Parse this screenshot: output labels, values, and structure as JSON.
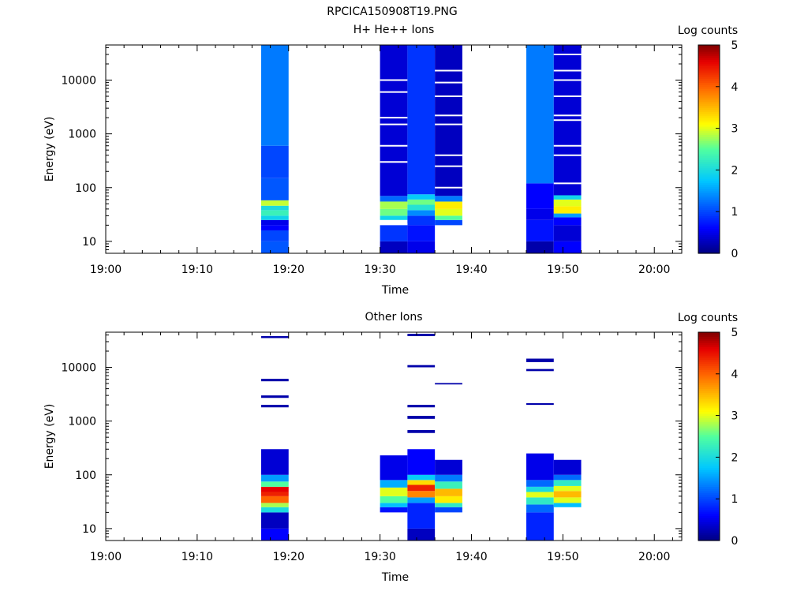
{
  "figure_title": "RPCICA150908T19.PNG",
  "chart_data": [
    {
      "type": "heatmap",
      "title": "H+ He++ Ions",
      "xlabel": "Time",
      "ylabel": "Energy (eV)",
      "x_ticks": [
        "19:00",
        "19:10",
        "19:20",
        "19:30",
        "19:40",
        "19:50",
        "20:00"
      ],
      "x_range": [
        "19:00",
        "20:03"
      ],
      "y_scale": "log",
      "y_ticks": [
        10,
        100,
        1000,
        10000
      ],
      "y_range": [
        6,
        45000
      ],
      "colorbar_label": "Log counts",
      "colorbar_ticks": [
        0,
        1,
        2,
        3,
        4,
        5
      ],
      "colorbar_range": [
        0,
        5
      ],
      "columns": [
        {
          "start": "19:17",
          "end": "19:20",
          "bands": [
            {
              "e_lo": 6,
              "e_hi": 10,
              "level": 1.1
            },
            {
              "e_lo": 10,
              "e_hi": 16,
              "level": 1.0
            },
            {
              "e_lo": 16,
              "e_hi": 20,
              "level": 0.6
            },
            {
              "e_lo": 20,
              "e_hi": 25,
              "level": 0.5
            },
            {
              "e_lo": 25,
              "e_hi": 30,
              "level": 1.9
            },
            {
              "e_lo": 30,
              "e_hi": 38,
              "level": 2.3
            },
            {
              "e_lo": 38,
              "e_hi": 46,
              "level": 2.0
            },
            {
              "e_lo": 46,
              "e_hi": 58,
              "level": 2.9
            },
            {
              "e_lo": 58,
              "e_hi": 150,
              "level": 1.1
            },
            {
              "e_lo": 150,
              "e_hi": 600,
              "level": 1.0
            },
            {
              "e_lo": 600,
              "e_hi": 45000,
              "level": 1.3
            }
          ]
        },
        {
          "start": "19:30",
          "end": "19:33",
          "bands": [
            {
              "e_lo": 6,
              "e_hi": 10,
              "level": 0.3
            },
            {
              "e_lo": 10,
              "e_hi": 20,
              "level": 0.9
            },
            {
              "e_lo": 25,
              "e_hi": 30,
              "level": 1.9
            },
            {
              "e_lo": 30,
              "e_hi": 40,
              "level": 2.6
            },
            {
              "e_lo": 40,
              "e_hi": 55,
              "level": 2.8
            },
            {
              "e_lo": 55,
              "e_hi": 70,
              "level": 1.2
            },
            {
              "e_lo": 70,
              "e_hi": 45000,
              "level": 0.4
            }
          ]
        },
        {
          "start": "19:33",
          "end": "19:36",
          "bands": [
            {
              "e_lo": 6,
              "e_hi": 10,
              "level": 0.5
            },
            {
              "e_lo": 10,
              "e_hi": 20,
              "level": 0.7
            },
            {
              "e_lo": 20,
              "e_hi": 30,
              "level": 0.9
            },
            {
              "e_lo": 30,
              "e_hi": 38,
              "level": 1.4
            },
            {
              "e_lo": 38,
              "e_hi": 48,
              "level": 2.1
            },
            {
              "e_lo": 48,
              "e_hi": 60,
              "level": 2.6
            },
            {
              "e_lo": 60,
              "e_hi": 75,
              "level": 1.8
            },
            {
              "e_lo": 75,
              "e_hi": 45000,
              "level": 0.9
            }
          ]
        },
        {
          "start": "19:36",
          "end": "19:39",
          "bands": [
            {
              "e_lo": 20,
              "e_hi": 25,
              "level": 1.0
            },
            {
              "e_lo": 25,
              "e_hi": 30,
              "level": 2.5
            },
            {
              "e_lo": 30,
              "e_hi": 40,
              "level": 3.0
            },
            {
              "e_lo": 40,
              "e_hi": 55,
              "level": 3.2
            },
            {
              "e_lo": 55,
              "e_hi": 70,
              "level": 1.3
            },
            {
              "e_lo": 70,
              "e_hi": 45000,
              "level": 0.3
            }
          ]
        },
        {
          "start": "19:46",
          "end": "19:49",
          "bands": [
            {
              "e_lo": 6,
              "e_hi": 10,
              "level": 0.2
            },
            {
              "e_lo": 10,
              "e_hi": 25,
              "level": 0.7
            },
            {
              "e_lo": 25,
              "e_hi": 40,
              "level": 0.5
            },
            {
              "e_lo": 40,
              "e_hi": 120,
              "level": 0.6
            },
            {
              "e_lo": 120,
              "e_hi": 45000,
              "level": 1.3
            }
          ]
        },
        {
          "start": "19:49",
          "end": "19:52",
          "bands": [
            {
              "e_lo": 6,
              "e_hi": 10,
              "level": 0.6
            },
            {
              "e_lo": 10,
              "e_hi": 20,
              "level": 0.4
            },
            {
              "e_lo": 20,
              "e_hi": 28,
              "level": 0.6
            },
            {
              "e_lo": 28,
              "e_hi": 33,
              "level": 1.5
            },
            {
              "e_lo": 33,
              "e_hi": 45,
              "level": 3.2
            },
            {
              "e_lo": 45,
              "e_hi": 60,
              "level": 3.0
            },
            {
              "e_lo": 60,
              "e_hi": 72,
              "level": 1.9
            },
            {
              "e_lo": 72,
              "e_hi": 45000,
              "level": 0.4
            }
          ]
        }
      ],
      "gaps": [
        {
          "start": "19:30",
          "end": "19:33",
          "e": [
            21,
            300,
            600,
            1500,
            2000,
            6000,
            10000
          ]
        },
        {
          "start": "19:36",
          "end": "19:39",
          "e": [
            100,
            250,
            400,
            1500,
            2200,
            5000,
            9000,
            15000
          ]
        },
        {
          "start": "19:49",
          "end": "19:52",
          "e": [
            120,
            400,
            600,
            1800,
            2200,
            5000,
            10000,
            15000,
            30000
          ]
        }
      ]
    },
    {
      "type": "heatmap",
      "title": "Other Ions",
      "xlabel": "Time",
      "ylabel": "Energy (eV)",
      "x_ticks": [
        "19:00",
        "19:10",
        "19:20",
        "19:30",
        "19:40",
        "19:50",
        "20:00"
      ],
      "x_range": [
        "19:00",
        "20:03"
      ],
      "y_scale": "log",
      "y_ticks": [
        10,
        100,
        1000,
        10000
      ],
      "y_range": [
        6,
        45000
      ],
      "colorbar_label": "Log counts",
      "colorbar_ticks": [
        0,
        1,
        2,
        3,
        4,
        5
      ],
      "colorbar_range": [
        0,
        5
      ],
      "columns": [
        {
          "start": "19:17",
          "end": "19:20",
          "bands": [
            {
              "e_lo": 6,
              "e_hi": 10,
              "level": 0.6
            },
            {
              "e_lo": 10,
              "e_hi": 20,
              "level": 0.3
            },
            {
              "e_lo": 20,
              "e_hi": 25,
              "level": 2.0
            },
            {
              "e_lo": 25,
              "e_hi": 30,
              "level": 2.8
            },
            {
              "e_lo": 30,
              "e_hi": 40,
              "level": 4.0
            },
            {
              "e_lo": 40,
              "e_hi": 48,
              "level": 4.4
            },
            {
              "e_lo": 48,
              "e_hi": 60,
              "level": 4.6
            },
            {
              "e_lo": 60,
              "e_hi": 75,
              "level": 2.5
            },
            {
              "e_lo": 75,
              "e_hi": 100,
              "level": 1.5
            },
            {
              "e_lo": 100,
              "e_hi": 300,
              "level": 0.4
            },
            {
              "e_lo": 1800,
              "e_hi": 2000,
              "level": 0.2
            },
            {
              "e_lo": 2700,
              "e_hi": 3000,
              "level": 0.2
            },
            {
              "e_lo": 5500,
              "e_hi": 6100,
              "level": 0.2
            },
            {
              "e_lo": 35000,
              "e_hi": 38000,
              "level": 0.2
            }
          ]
        },
        {
          "start": "19:30",
          "end": "19:33",
          "bands": [
            {
              "e_lo": 20,
              "e_hi": 25,
              "level": 0.7
            },
            {
              "e_lo": 25,
              "e_hi": 30,
              "level": 1.7
            },
            {
              "e_lo": 30,
              "e_hi": 40,
              "level": 2.5
            },
            {
              "e_lo": 40,
              "e_hi": 58,
              "level": 3.0
            },
            {
              "e_lo": 58,
              "e_hi": 80,
              "level": 1.6
            },
            {
              "e_lo": 80,
              "e_hi": 230,
              "level": 0.5
            }
          ]
        },
        {
          "start": "19:33",
          "end": "19:36",
          "bands": [
            {
              "e_lo": 6,
              "e_hi": 10,
              "level": 0.3
            },
            {
              "e_lo": 10,
              "e_hi": 30,
              "level": 0.8
            },
            {
              "e_lo": 30,
              "e_hi": 38,
              "level": 1.5
            },
            {
              "e_lo": 38,
              "e_hi": 50,
              "level": 3.8
            },
            {
              "e_lo": 50,
              "e_hi": 65,
              "level": 4.4
            },
            {
              "e_lo": 65,
              "e_hi": 80,
              "level": 3.3
            },
            {
              "e_lo": 80,
              "e_hi": 100,
              "level": 1.8
            },
            {
              "e_lo": 100,
              "e_hi": 300,
              "level": 0.6
            },
            {
              "e_lo": 600,
              "e_hi": 680,
              "level": 0.2
            },
            {
              "e_lo": 1100,
              "e_hi": 1250,
              "level": 0.2
            },
            {
              "e_lo": 1800,
              "e_hi": 2000,
              "level": 0.2
            },
            {
              "e_lo": 10000,
              "e_hi": 11000,
              "level": 0.2
            },
            {
              "e_lo": 38000,
              "e_hi": 42000,
              "level": 0.2
            }
          ]
        },
        {
          "start": "19:36",
          "end": "19:39",
          "bands": [
            {
              "e_lo": 20,
              "e_hi": 25,
              "level": 1.0
            },
            {
              "e_lo": 25,
              "e_hi": 30,
              "level": 2.2
            },
            {
              "e_lo": 30,
              "e_hi": 40,
              "level": 3.2
            },
            {
              "e_lo": 40,
              "e_hi": 55,
              "level": 3.5
            },
            {
              "e_lo": 55,
              "e_hi": 75,
              "level": 2.3
            },
            {
              "e_lo": 75,
              "e_hi": 100,
              "level": 1.3
            },
            {
              "e_lo": 100,
              "e_hi": 190,
              "level": 0.4
            },
            {
              "e_lo": 4800,
              "e_hi": 5100,
              "level": 0.2
            }
          ]
        },
        {
          "start": "19:46",
          "end": "19:49",
          "bands": [
            {
              "e_lo": 6,
              "e_hi": 20,
              "level": 0.8
            },
            {
              "e_lo": 20,
              "e_hi": 28,
              "level": 1.2
            },
            {
              "e_lo": 28,
              "e_hi": 38,
              "level": 2.2
            },
            {
              "e_lo": 38,
              "e_hi": 48,
              "level": 3.0
            },
            {
              "e_lo": 48,
              "e_hi": 60,
              "level": 2.0
            },
            {
              "e_lo": 60,
              "e_hi": 80,
              "level": 1.2
            },
            {
              "e_lo": 80,
              "e_hi": 250,
              "level": 0.5
            },
            {
              "e_lo": 2000,
              "e_hi": 2150,
              "level": 0.2
            },
            {
              "e_lo": 8500,
              "e_hi": 9300,
              "level": 0.2
            },
            {
              "e_lo": 12500,
              "e_hi": 14500,
              "level": 0.2
            }
          ]
        },
        {
          "start": "19:49",
          "end": "19:52",
          "bands": [
            {
              "e_lo": 25,
              "e_hi": 30,
              "level": 1.7
            },
            {
              "e_lo": 30,
              "e_hi": 38,
              "level": 3.0
            },
            {
              "e_lo": 38,
              "e_hi": 50,
              "level": 3.5
            },
            {
              "e_lo": 50,
              "e_hi": 62,
              "level": 3.0
            },
            {
              "e_lo": 62,
              "e_hi": 80,
              "level": 2.2
            },
            {
              "e_lo": 80,
              "e_hi": 100,
              "level": 1.2
            },
            {
              "e_lo": 100,
              "e_hi": 190,
              "level": 0.4
            }
          ]
        }
      ],
      "gaps": []
    }
  ]
}
